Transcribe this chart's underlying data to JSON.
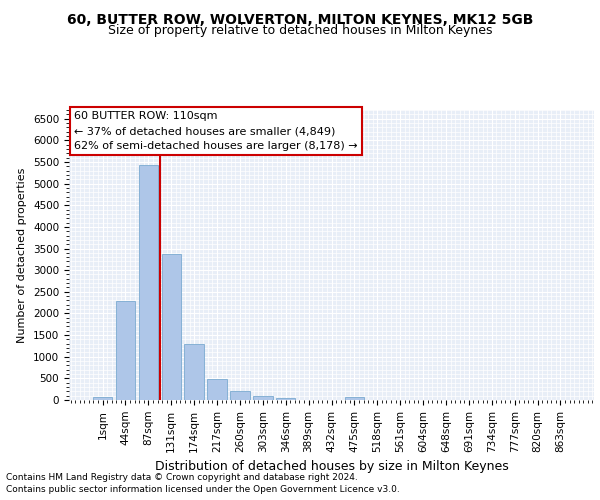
{
  "title": "60, BUTTER ROW, WOLVERTON, MILTON KEYNES, MK12 5GB",
  "subtitle": "Size of property relative to detached houses in Milton Keynes",
  "xlabel": "Distribution of detached houses by size in Milton Keynes",
  "ylabel": "Number of detached properties",
  "footer_line1": "Contains HM Land Registry data © Crown copyright and database right 2024.",
  "footer_line2": "Contains public sector information licensed under the Open Government Licence v3.0.",
  "annotation_title": "60 BUTTER ROW: 110sqm",
  "annotation_line1": "← 37% of detached houses are smaller (4,849)",
  "annotation_line2": "62% of semi-detached houses are larger (8,178) →",
  "bar_color": "#aec6e8",
  "bar_edge_color": "#7aaad0",
  "vline_color": "#cc0000",
  "categories": [
    "1sqm",
    "44sqm",
    "87sqm",
    "131sqm",
    "174sqm",
    "217sqm",
    "260sqm",
    "303sqm",
    "346sqm",
    "389sqm",
    "432sqm",
    "475sqm",
    "518sqm",
    "561sqm",
    "604sqm",
    "648sqm",
    "691sqm",
    "734sqm",
    "777sqm",
    "820sqm",
    "863sqm"
  ],
  "values": [
    70,
    2280,
    5430,
    3380,
    1300,
    480,
    210,
    95,
    55,
    0,
    0,
    60,
    0,
    0,
    0,
    0,
    0,
    0,
    0,
    0,
    0
  ],
  "ylim": [
    0,
    6700
  ],
  "yticks": [
    0,
    500,
    1000,
    1500,
    2000,
    2500,
    3000,
    3500,
    4000,
    4500,
    5000,
    5500,
    6000,
    6500
  ],
  "background_color": "#e8eef7",
  "grid_color": "white",
  "title_fontsize": 10,
  "subtitle_fontsize": 9,
  "footer_fontsize": 6.5,
  "ylabel_fontsize": 8,
  "xlabel_fontsize": 9,
  "tick_fontsize": 7.5,
  "annot_fontsize": 8
}
